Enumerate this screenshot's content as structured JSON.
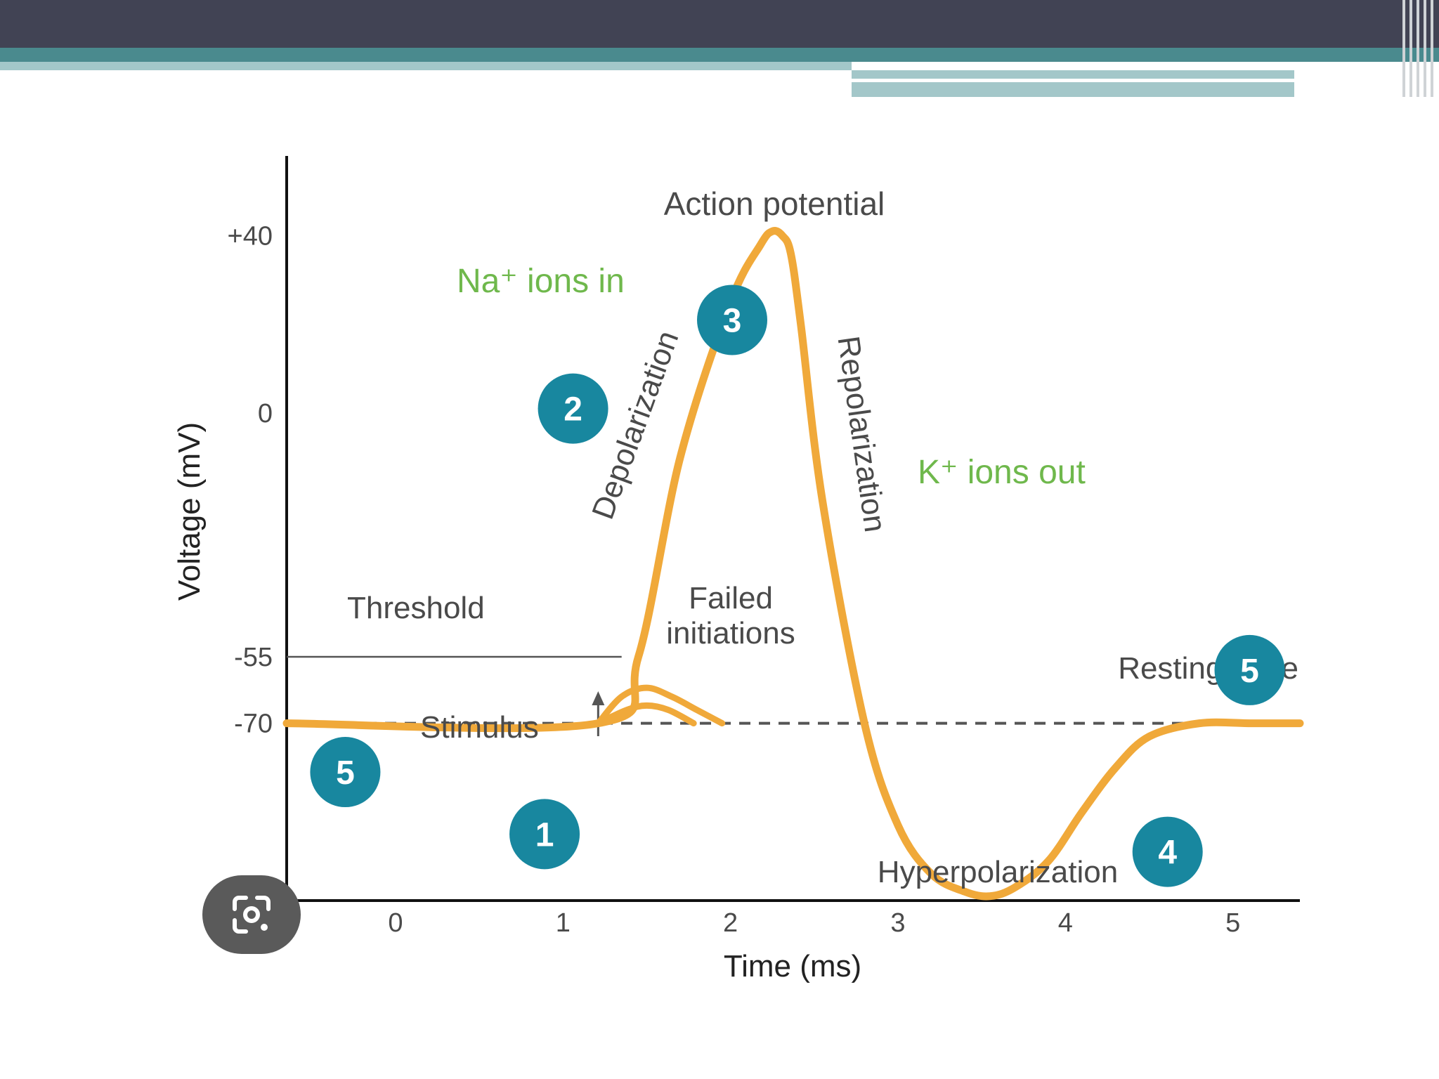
{
  "colors": {
    "header_dark": "#414354",
    "header_teal": "#4a8a8e",
    "curve": "#f0a93a",
    "ion_label": "#6fb84c",
    "badge": "#18879f",
    "axis": "#111111",
    "label": "#4a4a4a"
  },
  "lens_button": {
    "icon": "google-lens-icon"
  },
  "chart_data": {
    "type": "line",
    "title": "Action potential",
    "xlabel": "Time (ms)",
    "ylabel": "Voltage (mV)",
    "x_ticks": [
      "0",
      "1",
      "2",
      "3",
      "4",
      "5"
    ],
    "y_ticks": [
      {
        "value": 40,
        "label": "+40"
      },
      {
        "value": 0,
        "label": "0"
      },
      {
        "value": -55,
        "label": "-55"
      },
      {
        "value": -70,
        "label": "-70"
      }
    ],
    "xlim": [
      -0.65,
      5.4
    ],
    "ylim": [
      -110,
      58
    ],
    "series": [
      {
        "x": [
          -0.65,
          1.21,
          1.45,
          1.7,
          2.0,
          2.18,
          2.25,
          2.31,
          2.36,
          2.42,
          2.55,
          2.8,
          3.0,
          3.2,
          3.4,
          3.55,
          3.7,
          3.9,
          4.1,
          4.3,
          4.5,
          4.8,
          5.1,
          5.4
        ],
        "y": [
          -70,
          -70,
          -55,
          -10,
          25,
          38,
          41,
          40,
          36,
          20,
          -20,
          -70,
          -93,
          -104,
          -108,
          -109,
          -107,
          -101,
          -90,
          -80,
          -73,
          -70,
          -70,
          -70
        ]
      }
    ],
    "failed_initiations": [
      {
        "x": [
          1.21,
          1.35,
          1.5,
          1.65,
          1.8,
          1.95
        ],
        "y": [
          -70,
          -64,
          -62,
          -64,
          -67,
          -70
        ]
      },
      {
        "x": [
          1.21,
          1.38,
          1.5,
          1.63,
          1.78
        ],
        "y": [
          -70,
          -67,
          -66,
          -67,
          -70
        ]
      }
    ],
    "threshold": {
      "value": -55,
      "x_end": 1.35,
      "label": "Threshold"
    },
    "resting_line": {
      "value": -70,
      "style": "dashed"
    },
    "stimulus": {
      "x": 1.21,
      "label": "Stimulus"
    },
    "annotations": {
      "na_ions": "Na⁺ ions in",
      "k_ions": "K⁺ ions out",
      "depolarization": "Depolarization",
      "repolarization": "Repolarization",
      "failed": [
        "Failed",
        "initiations"
      ],
      "resting_state": "Resting state",
      "hyperpolarization": "Hyperpolarization"
    },
    "phase_badges": [
      {
        "number": "5",
        "x": -0.3,
        "y": -81
      },
      {
        "number": "1",
        "x": 0.89,
        "y": -95
      },
      {
        "number": "2",
        "x": 1.06,
        "y": 1
      },
      {
        "number": "3",
        "x": 2.01,
        "y": 21
      },
      {
        "number": "4",
        "x": 4.61,
        "y": -99
      },
      {
        "number": "5",
        "x": 5.1,
        "y": -58
      }
    ],
    "grid": false
  }
}
